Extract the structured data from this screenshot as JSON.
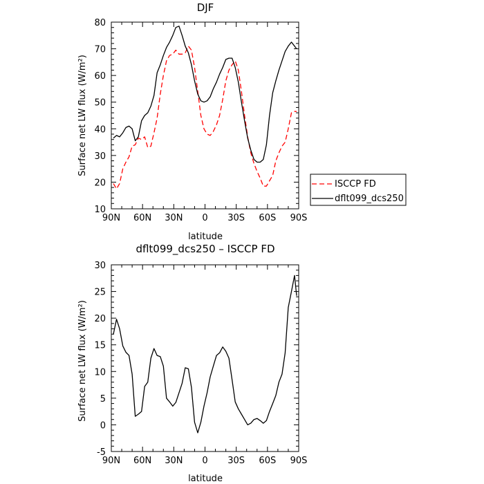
{
  "chart_data": [
    {
      "type": "line",
      "title": "DJF",
      "xlabel": "latitude",
      "ylabel": "Surface net LW flux (W/m²)",
      "xlim": [
        90,
        -90
      ],
      "ylim": [
        10,
        80
      ],
      "x_ticks": [
        90,
        60,
        30,
        0,
        -30,
        -60,
        -90
      ],
      "x_tick_labels": [
        "90N",
        "60N",
        "30N",
        "0",
        "30S",
        "60S",
        "90S"
      ],
      "y_ticks": [
        10,
        20,
        30,
        40,
        50,
        60,
        70,
        80
      ],
      "legend_position": "right of plot",
      "grid": false,
      "x": [
        88,
        85,
        82,
        79,
        76,
        73,
        70,
        67,
        64,
        61,
        58,
        55,
        52,
        49,
        46,
        43,
        40,
        37,
        34,
        31,
        28,
        25,
        22,
        19,
        16,
        13,
        10,
        7,
        4,
        1,
        -2,
        -5,
        -8,
        -11,
        -14,
        -17,
        -20,
        -23,
        -26,
        -29,
        -32,
        -35,
        -38,
        -41,
        -44,
        -47,
        -50,
        -53,
        -56,
        -59,
        -62,
        -65,
        -68,
        -71,
        -74,
        -77,
        -80,
        -83,
        -86,
        -88
      ],
      "series": [
        {
          "name": "ISCCP FD",
          "color": "#ff0000",
          "dash": "dashed",
          "values": [
            19.5,
            17.5,
            19.5,
            25.0,
            27.5,
            29.5,
            33.5,
            34.0,
            36.5,
            36.0,
            37.0,
            33.0,
            33.5,
            38.5,
            44.0,
            53.0,
            60.0,
            65.5,
            67.5,
            68.0,
            69.5,
            68.0,
            68.0,
            68.5,
            71.0,
            69.5,
            63.0,
            54.0,
            45.0,
            40.0,
            38.0,
            37.5,
            39.0,
            41.5,
            45.0,
            51.0,
            58.0,
            62.0,
            64.0,
            65.5,
            62.0,
            54.0,
            45.0,
            37.0,
            31.0,
            27.0,
            24.0,
            21.5,
            18.5,
            18.5,
            20.5,
            22.5,
            28.0,
            31.0,
            33.5,
            35.0,
            40.0,
            46.0,
            46.5,
            46.5
          ]
        },
        {
          "name": "dflt099_dcs250",
          "color": "#000000",
          "dash": "solid",
          "values": [
            36.5,
            37.5,
            37.0,
            38.5,
            40.5,
            41.0,
            40.0,
            35.5,
            37.0,
            43.0,
            45.0,
            46.0,
            48.5,
            52.5,
            61.0,
            64.0,
            67.5,
            70.5,
            72.5,
            75.0,
            78.0,
            78.5,
            75.0,
            71.0,
            68.5,
            64.0,
            58.0,
            53.0,
            50.5,
            50.0,
            50.5,
            52.0,
            55.0,
            57.5,
            60.5,
            63.0,
            66.0,
            66.5,
            66.5,
            63.0,
            57.5,
            50.0,
            43.0,
            36.5,
            32.0,
            28.5,
            27.5,
            27.5,
            28.5,
            34.0,
            45.0,
            53.5,
            58.0,
            62.0,
            65.5,
            69.0,
            71.0,
            72.5,
            71.0,
            70.0
          ]
        }
      ]
    },
    {
      "type": "line",
      "title": "dflt099_dcs250 – ISCCP FD",
      "xlabel": "latitude",
      "ylabel": "Surface net LW flux (W/m²)",
      "xlim": [
        90,
        -90
      ],
      "ylim": [
        -5,
        30
      ],
      "x_ticks": [
        90,
        60,
        30,
        0,
        -30,
        -60,
        -90
      ],
      "x_tick_labels": [
        "90N",
        "60N",
        "30N",
        "0",
        "30S",
        "60S",
        "90S"
      ],
      "y_ticks": [
        -5,
        0,
        5,
        10,
        15,
        20,
        25,
        30
      ],
      "grid": false,
      "x": [
        88,
        85,
        82,
        79,
        76,
        73,
        70,
        67,
        64,
        61,
        58,
        55,
        52,
        49,
        46,
        43,
        40,
        37,
        34,
        31,
        28,
        25,
        22,
        19,
        16,
        13,
        10,
        7,
        4,
        1,
        -2,
        -5,
        -8,
        -11,
        -14,
        -17,
        -20,
        -23,
        -26,
        -29,
        -32,
        -35,
        -38,
        -41,
        -44,
        -47,
        -50,
        -53,
        -56,
        -59,
        -62,
        -65,
        -68,
        -71,
        -74,
        -77,
        -80,
        -83,
        -86,
        -88
      ],
      "series": [
        {
          "name": "",
          "color": "#000000",
          "dash": "solid",
          "values": [
            17.0,
            19.8,
            18.0,
            14.8,
            13.6,
            13.0,
            9.5,
            1.6,
            2.0,
            2.5,
            7.2,
            8.0,
            12.5,
            14.3,
            13.0,
            12.8,
            11.0,
            5.0,
            4.3,
            3.5,
            4.2,
            6.0,
            7.8,
            10.7,
            10.5,
            7.0,
            0.5,
            -1.5,
            0.5,
            3.5,
            6.0,
            9.0,
            11.0,
            13.0,
            13.5,
            14.6,
            13.8,
            12.5,
            8.5,
            4.3,
            3.0,
            2.0,
            1.0,
            0.0,
            0.3,
            1.0,
            1.2,
            0.8,
            0.3,
            0.8,
            2.5,
            4.0,
            5.5,
            8.0,
            9.5,
            13.5,
            22.0,
            25.0,
            28.0,
            24.2
          ]
        }
      ]
    }
  ]
}
